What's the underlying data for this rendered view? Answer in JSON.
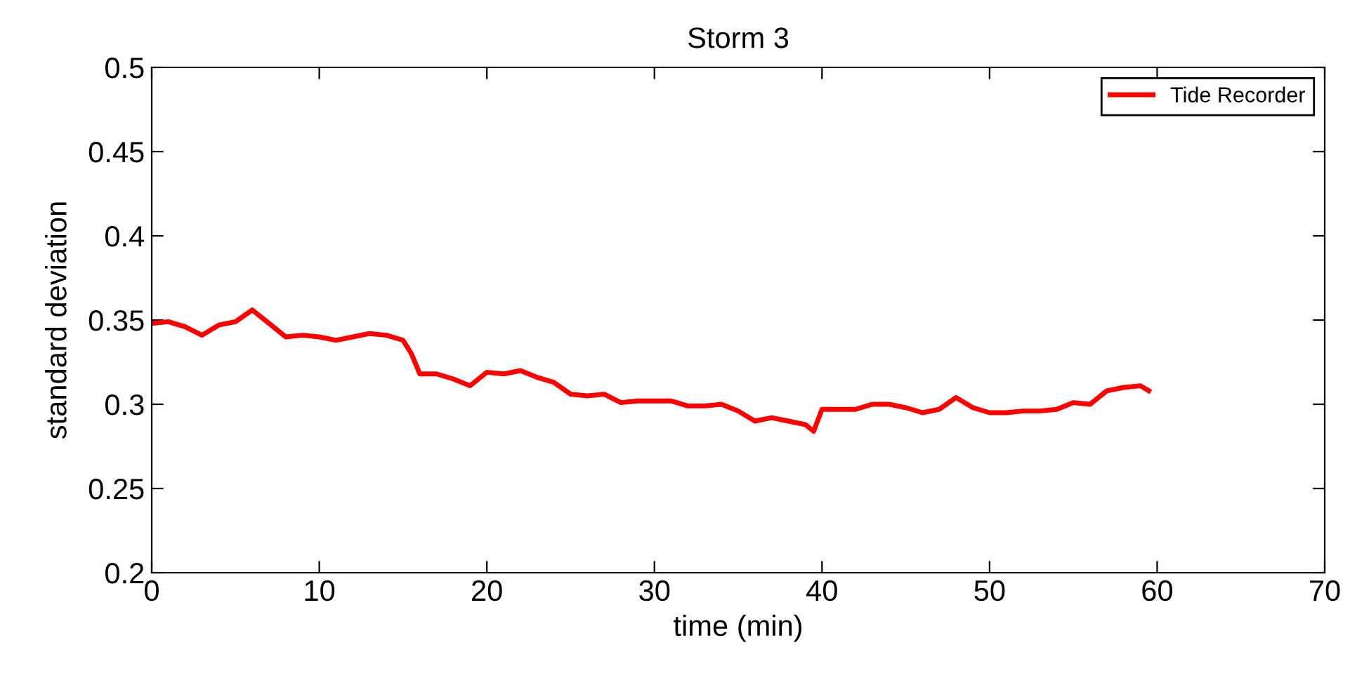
{
  "chart_data": {
    "type": "line",
    "title": "Storm 3",
    "xlabel": "time (min)",
    "ylabel": "standard deviation",
    "xlim": [
      0,
      70
    ],
    "xticks": [
      0,
      10,
      20,
      30,
      40,
      50,
      60,
      70
    ],
    "ylim": [
      0.2,
      0.5
    ],
    "yticks": [
      0.2,
      0.25,
      0.3,
      0.35,
      0.4,
      0.45,
      0.5
    ],
    "grid": false,
    "legend": "top right",
    "marker": "none",
    "line_style": "solid",
    "series": [
      {
        "name": "Tide Recorder",
        "color": "#ff0000",
        "x": [
          0,
          1,
          2,
          3,
          4,
          5,
          6,
          7,
          8,
          9,
          10,
          11,
          12,
          13,
          14,
          15,
          15.5,
          16,
          17,
          18,
          19,
          20,
          21,
          22,
          23,
          24,
          25,
          26,
          27,
          28,
          29,
          30,
          31,
          32,
          33,
          34,
          35,
          36,
          37,
          38,
          39,
          39.5,
          40,
          41,
          42,
          43,
          44,
          45,
          46,
          47,
          48,
          49,
          50,
          51,
          52,
          53,
          54,
          55,
          56,
          57,
          58,
          59,
          59.5
        ],
        "values": [
          0.348,
          0.349,
          0.346,
          0.341,
          0.347,
          0.349,
          0.356,
          0.348,
          0.34,
          0.341,
          0.34,
          0.338,
          0.34,
          0.342,
          0.341,
          0.338,
          0.33,
          0.318,
          0.318,
          0.315,
          0.311,
          0.319,
          0.318,
          0.32,
          0.316,
          0.313,
          0.306,
          0.305,
          0.306,
          0.301,
          0.302,
          0.302,
          0.302,
          0.299,
          0.299,
          0.3,
          0.296,
          0.29,
          0.292,
          0.29,
          0.288,
          0.284,
          0.297,
          0.297,
          0.297,
          0.3,
          0.3,
          0.298,
          0.295,
          0.297,
          0.304,
          0.298,
          0.295,
          0.295,
          0.296,
          0.296,
          0.297,
          0.301,
          0.3,
          0.308,
          0.31,
          0.311,
          0.308
        ]
      }
    ]
  }
}
